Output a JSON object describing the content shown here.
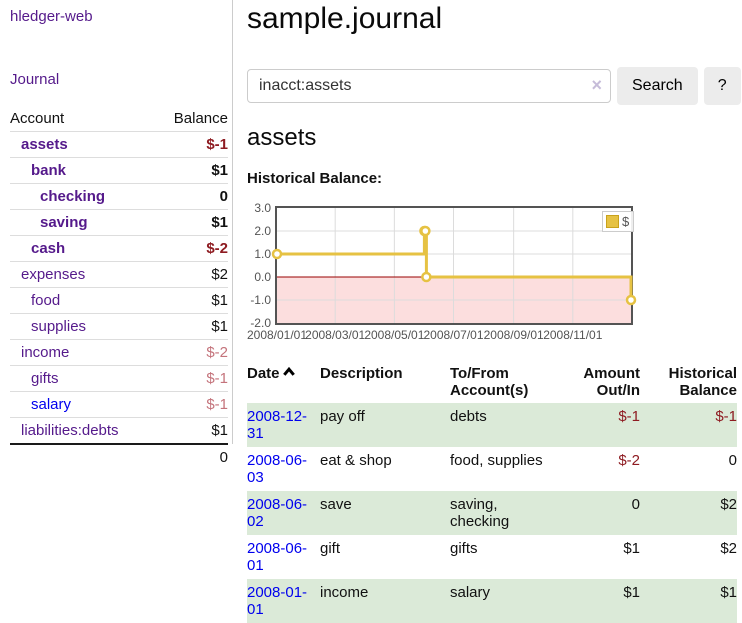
{
  "app": {
    "brand": "hledger-web",
    "nav_journal": "Journal"
  },
  "theme": {
    "link_purple": "#551a8b",
    "link_blue": "#0000ee",
    "negative_strong": "#8e1b21",
    "negative_soft": "#c4737b",
    "striped_row_green": "#dbead8",
    "button_gray": "#ececec",
    "series_yellow": "#e6c243"
  },
  "sidebar": {
    "columns": {
      "account": "Account",
      "balance": "Balance"
    },
    "accounts": [
      {
        "name": "assets",
        "balance": "$-1",
        "cls_name": "d0 cur",
        "cls_bal": "cur neg"
      },
      {
        "name": "bank",
        "balance": "$1",
        "cls_name": "d1 cur",
        "cls_bal": "cur"
      },
      {
        "name": "checking",
        "balance": "0",
        "cls_name": "d2 cur",
        "cls_bal": "cur"
      },
      {
        "name": "saving",
        "balance": "$1",
        "cls_name": "d2 cur",
        "cls_bal": "cur"
      },
      {
        "name": "cash",
        "balance": "$-2",
        "cls_name": "d1 cur",
        "cls_bal": "cur neg"
      },
      {
        "name": "expenses",
        "balance": "$2",
        "cls_name": "d0",
        "cls_bal": ""
      },
      {
        "name": "food",
        "balance": "$1",
        "cls_name": "d1",
        "cls_bal": ""
      },
      {
        "name": "supplies",
        "balance": "$1",
        "cls_name": "d1",
        "cls_bal": ""
      },
      {
        "name": "income",
        "balance": "$-2",
        "cls_name": "d0",
        "cls_bal": "rose"
      },
      {
        "name": "gifts",
        "balance": "$-1",
        "cls_name": "d1",
        "cls_bal": "rose"
      },
      {
        "name": "salary",
        "balance": "$-1",
        "cls_name": "d1 blue",
        "cls_bal": "rose"
      },
      {
        "name": "liabilities:debts",
        "balance": "$1",
        "cls_name": "d0",
        "cls_bal": ""
      }
    ],
    "total": "0"
  },
  "main": {
    "title": "sample.journal",
    "search": {
      "value": "inacct:assets",
      "clear_icon": "×",
      "search_button": "Search",
      "help_button": "?"
    },
    "account_heading": "assets",
    "chart_label": "Historical Balance:"
  },
  "chart_data": {
    "type": "line",
    "title": "Historical Balance",
    "step": true,
    "series": [
      {
        "name": "$",
        "color": "#e6c243",
        "points": [
          [
            "2008-01-01",
            1
          ],
          [
            "2008-06-01",
            2
          ],
          [
            "2008-06-02",
            2
          ],
          [
            "2008-06-03",
            0
          ],
          [
            "2008-12-31",
            -1
          ]
        ]
      }
    ],
    "x_range": [
      "2008-01-01",
      "2008-12-31"
    ],
    "x_tick_labels": [
      "2008/01/01",
      "2008/03/01",
      "2008/05/01",
      "2008/07/01",
      "2008/09/01",
      "2008/11/01"
    ],
    "y_ticks": [
      3.0,
      2.0,
      1.0,
      0.0,
      -1.0,
      -2.0
    ],
    "ylim": [
      -2,
      3
    ],
    "grid": true,
    "legend": {
      "position": "top-right",
      "label": "$"
    },
    "colors": {
      "negative_region": "#fcdede",
      "zero_line": "#990000",
      "grid": "#dcdcdc",
      "border": "#545454"
    }
  },
  "register": {
    "headers": [
      "Date",
      "Description",
      "To/From Account(s)",
      "Amount Out/In",
      "Historical Balance"
    ],
    "sort": {
      "column": "Date",
      "direction": "up"
    },
    "rows": [
      {
        "date": "2008-12-31",
        "description": "pay off",
        "accounts": "debts",
        "amount": "$-1",
        "balance": "$-1",
        "cls_row": "striped",
        "cls_amount": "neg",
        "cls_balance": "neg"
      },
      {
        "date": "2008-06-03",
        "description": "eat & shop",
        "accounts": "food, supplies",
        "amount": "$-2",
        "balance": "0",
        "cls_row": "",
        "cls_amount": "neg",
        "cls_balance": ""
      },
      {
        "date": "2008-06-02",
        "description": "save",
        "accounts": "saving, checking",
        "amount": "0",
        "balance": "$2",
        "cls_row": "striped",
        "cls_amount": "",
        "cls_balance": ""
      },
      {
        "date": "2008-06-01",
        "description": "gift",
        "accounts": "gifts",
        "amount": "$1",
        "balance": "$2",
        "cls_row": "",
        "cls_amount": "",
        "cls_balance": ""
      },
      {
        "date": "2008-01-01",
        "description": "income",
        "accounts": "salary",
        "amount": "$1",
        "balance": "$1",
        "cls_row": "striped",
        "cls_amount": "",
        "cls_balance": ""
      }
    ]
  }
}
